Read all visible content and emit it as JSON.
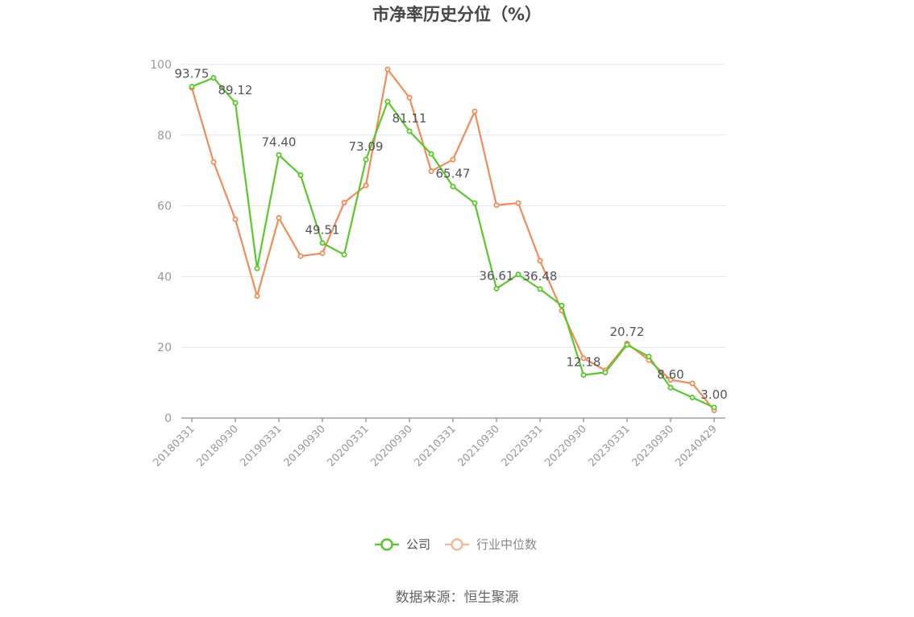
{
  "chart_data": {
    "type": "line",
    "title": "市净率历史分位（%）",
    "source": "数据来源：恒生聚源",
    "ylim": [
      0,
      100
    ],
    "yticks": [
      0,
      20,
      40,
      60,
      80,
      100
    ],
    "x": [
      "20180331",
      "20180630",
      "20180930",
      "20181231",
      "20190331",
      "20190630",
      "20190930",
      "20191231",
      "20200331",
      "20200630",
      "20200930",
      "20201231",
      "20210331",
      "20210630",
      "20210930",
      "20211231",
      "20220331",
      "20220630",
      "20220930",
      "20221231",
      "20230331",
      "20230630",
      "20230930",
      "20231231",
      "20240429"
    ],
    "xticks": [
      "20180331",
      "20180930",
      "20190331",
      "20190930",
      "20200331",
      "20200930",
      "20210331",
      "20210930",
      "20220331",
      "20220930",
      "20230331",
      "20230930",
      "20240429"
    ],
    "grid": true,
    "legend_position": "bottom",
    "series": [
      {
        "name": "公司",
        "color": "#5cc72d",
        "values": [
          93.75,
          96.2,
          89.12,
          42.3,
          74.4,
          68.7,
          49.51,
          46.2,
          73.09,
          89.5,
          81.11,
          74.7,
          65.47,
          60.8,
          36.61,
          40.6,
          36.48,
          31.8,
          12.18,
          12.9,
          20.72,
          17.4,
          8.6,
          5.8,
          3.0
        ],
        "labels": {
          "0": "93.75",
          "2": "89.12",
          "4": "74.40",
          "6": "49.51",
          "8": "73.09",
          "10": "81.11",
          "12": "65.47",
          "14": "36.61",
          "16": "36.48",
          "18": "12.18",
          "20": "20.72",
          "22": "8.60",
          "24": "3.00"
        }
      },
      {
        "name": "行业中位数",
        "color": "#f08c5a",
        "values": [
          93.4,
          72.4,
          56.2,
          34.5,
          56.6,
          45.8,
          46.6,
          60.9,
          65.8,
          98.6,
          90.6,
          69.8,
          73.1,
          86.7,
          60.2,
          60.8,
          44.5,
          30.4,
          16.9,
          13.5,
          21.1,
          16.4,
          10.8,
          9.8,
          2.2
        ]
      }
    ]
  }
}
